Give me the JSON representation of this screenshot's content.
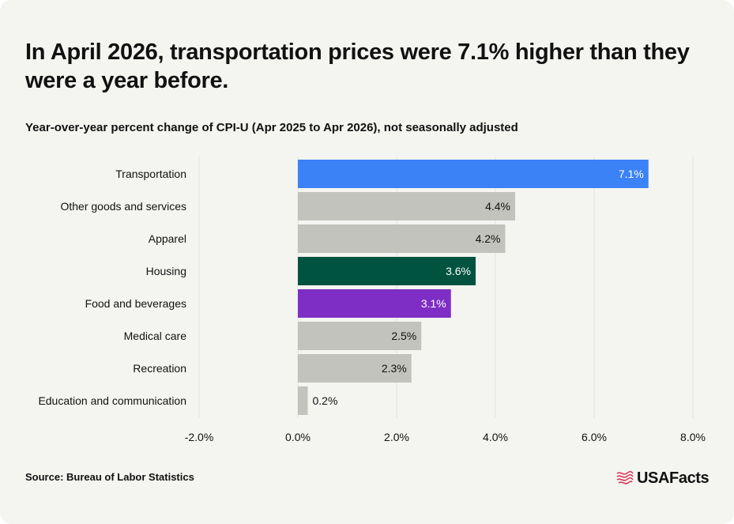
{
  "header": {
    "title": "In April 2026, transportation prices were 7.1% higher than they were a year before.",
    "subtitle": "Year-over-year percent change of CPI-U (Apr 2025 to Apr 2026), not seasonally adjusted"
  },
  "footer": {
    "source": "Source: Bureau of Labor Statistics",
    "brand": "USAFacts"
  },
  "colors": {
    "transportation": "#3b82f6",
    "housing": "#00533f",
    "food": "#7e2ec4",
    "default_bar": "#c3c3bd",
    "gridline": "#e2e2dd",
    "logo_accent": "#d9365b"
  },
  "chart_data": {
    "type": "bar",
    "orientation": "horizontal",
    "categories": [
      "Transportation",
      "Other goods and services",
      "Apparel",
      "Housing",
      "Food and beverages",
      "Medical care",
      "Recreation",
      "Education and communication"
    ],
    "values": [
      7.1,
      4.4,
      4.2,
      3.6,
      3.1,
      2.5,
      2.3,
      0.2
    ],
    "data_labels": [
      "7.1%",
      "4.4%",
      "4.2%",
      "3.6%",
      "3.1%",
      "2.5%",
      "2.3%",
      "0.2%"
    ],
    "bar_colors": [
      "#3b82f6",
      "#c3c3bd",
      "#c3c3bd",
      "#00533f",
      "#7e2ec4",
      "#c3c3bd",
      "#c3c3bd",
      "#c3c3bd"
    ],
    "label_colors": [
      "#ffffff",
      "#111111",
      "#111111",
      "#ffffff",
      "#ffffff",
      "#111111",
      "#111111",
      "#111111"
    ],
    "xlim": [
      -2,
      8
    ],
    "xticks": [
      -2,
      0,
      2,
      4,
      6,
      8
    ],
    "xtick_labels": [
      "-2.0%",
      "0.0%",
      "2.0%",
      "4.0%",
      "6.0%",
      "8.0%"
    ],
    "grid": true
  }
}
